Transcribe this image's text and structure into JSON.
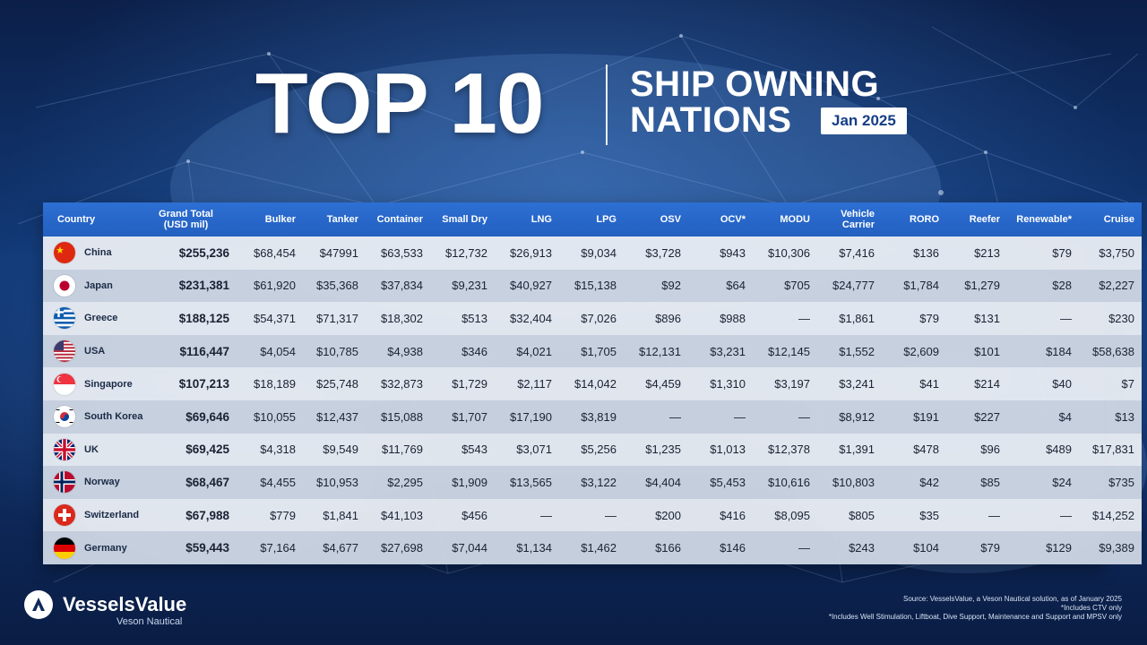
{
  "header": {
    "title_main": "TOP 10",
    "title_line1": "SHIP OWNING",
    "title_line2": "NATIONS",
    "date": "Jan 2025"
  },
  "chart_data": {
    "type": "table",
    "columns": [
      "Country",
      "Grand Total (USD mil)",
      "Bulker",
      "Tanker",
      "Container",
      "Small Dry",
      "LNG",
      "LPG",
      "OSV",
      "OCV*",
      "MODU",
      "Vehicle Carrier",
      "RORO",
      "Reefer",
      "Renewable*",
      "Cruise"
    ],
    "header_lines": [
      [
        "Country"
      ],
      [
        "Grand Total",
        "(USD mil)"
      ],
      [
        "Bulker"
      ],
      [
        "Tanker"
      ],
      [
        "Container"
      ],
      [
        "Small Dry"
      ],
      [
        "LNG"
      ],
      [
        "LPG"
      ],
      [
        "OSV"
      ],
      [
        "OCV*"
      ],
      [
        "MODU"
      ],
      [
        "Vehicle",
        "Carrier"
      ],
      [
        "RORO"
      ],
      [
        "Reefer"
      ],
      [
        "Renewable*"
      ],
      [
        "Cruise"
      ]
    ],
    "rows": [
      {
        "country": "China",
        "flag": "china-flag-icon",
        "cells": [
          "$255,236",
          "$68,454",
          "$47991",
          "$63,533",
          "$12,732",
          "$26,913",
          "$9,034",
          "$3,728",
          "$943",
          "$10,306",
          "$7,416",
          "$136",
          "$213",
          "$79",
          "$3,750"
        ]
      },
      {
        "country": "Japan",
        "flag": "japan-flag-icon",
        "cells": [
          "$231,381",
          "$61,920",
          "$35,368",
          "$37,834",
          "$9,231",
          "$40,927",
          "$15,138",
          "$92",
          "$64",
          "$705",
          "$24,777",
          "$1,784",
          "$1,279",
          "$28",
          "$2,227"
        ]
      },
      {
        "country": "Greece",
        "flag": "greece-flag-icon",
        "cells": [
          "$188,125",
          "$54,371",
          "$71,317",
          "$18,302",
          "$513",
          "$32,404",
          "$7,026",
          "$896",
          "$988",
          "—",
          "$1,861",
          "$79",
          "$131",
          "—",
          "$230"
        ]
      },
      {
        "country": "USA",
        "flag": "usa-flag-icon",
        "cells": [
          "$116,447",
          "$4,054",
          "$10,785",
          "$4,938",
          "$346",
          "$4,021",
          "$1,705",
          "$12,131",
          "$3,231",
          "$12,145",
          "$1,552",
          "$2,609",
          "$101",
          "$184",
          "$58,638"
        ]
      },
      {
        "country": "Singapore",
        "flag": "singapore-flag-icon",
        "cells": [
          "$107,213",
          "$18,189",
          "$25,748",
          "$32,873",
          "$1,729",
          "$2,117",
          "$14,042",
          "$4,459",
          "$1,310",
          "$3,197",
          "$3,241",
          "$41",
          "$214",
          "$40",
          "$7"
        ]
      },
      {
        "country": "South Korea",
        "flag": "south-korea-flag-icon",
        "cells": [
          "$69,646",
          "$10,055",
          "$12,437",
          "$15,088",
          "$1,707",
          "$17,190",
          "$3,819",
          "—",
          "—",
          "—",
          "$8,912",
          "$191",
          "$227",
          "$4",
          "$13"
        ]
      },
      {
        "country": "UK",
        "flag": "uk-flag-icon",
        "cells": [
          "$69,425",
          "$4,318",
          "$9,549",
          "$11,769",
          "$543",
          "$3,071",
          "$5,256",
          "$1,235",
          "$1,013",
          "$12,378",
          "$1,391",
          "$478",
          "$96",
          "$489",
          "$17,831"
        ]
      },
      {
        "country": "Norway",
        "flag": "norway-flag-icon",
        "cells": [
          "$68,467",
          "$4,455",
          "$10,953",
          "$2,295",
          "$1,909",
          "$13,565",
          "$3,122",
          "$4,404",
          "$5,453",
          "$10,616",
          "$10,803",
          "$42",
          "$85",
          "$24",
          "$735"
        ]
      },
      {
        "country": "Switzerland",
        "flag": "switzerland-flag-icon",
        "cells": [
          "$67,988",
          "$779",
          "$1,841",
          "$41,103",
          "$456",
          "—",
          "—",
          "$200",
          "$416",
          "$8,095",
          "$805",
          "$35",
          "—",
          "—",
          "$14,252"
        ]
      },
      {
        "country": "Germany",
        "flag": "germany-flag-icon",
        "cells": [
          "$59,443",
          "$7,164",
          "$4,677",
          "$27,698",
          "$7,044",
          "$1,134",
          "$1,462",
          "$166",
          "$146",
          "—",
          "$243",
          "$104",
          "$79",
          "$129",
          "$9,389"
        ]
      }
    ]
  },
  "footer": {
    "logo_name": "VesselsValue",
    "logo_sub": "Veson Nautical",
    "notes": [
      "Source: VesselsValue, a Veson Nautical solution, as of January 2025",
      "*Includes CTV only",
      "*Includes Well Stimulation, Liftboat, Dive Support, Maintenance and Support and MPSV only"
    ]
  },
  "colors": {
    "header_blue": "#2a68cc",
    "background_navy": "#0e2a5c",
    "row_light": "#e8ecf3",
    "row_dark": "#cdd5e2"
  }
}
